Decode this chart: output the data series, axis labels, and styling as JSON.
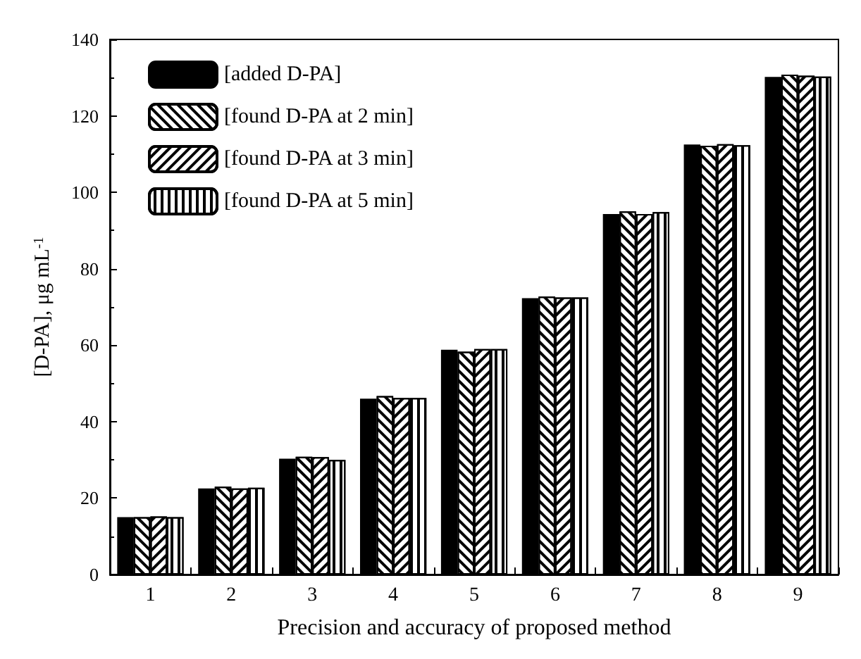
{
  "chart_data": {
    "type": "bar",
    "xlabel": "Precision and accuracy of proposed method",
    "ylabel": "[D-PA], μg mL$^{-1}$",
    "categories": [
      "1",
      "2",
      "3",
      "4",
      "5",
      "6",
      "7",
      "8",
      "9"
    ],
    "series": [
      {
        "name": "[added D-PA]",
        "color": "#000000",
        "values": [
          15,
          22.5,
          30.3,
          46,
          58.8,
          72.3,
          94.3,
          112.5,
          130.2
        ]
      },
      {
        "name": "[found D-PA at 2 min]",
        "color": "#ffffff",
        "values": [
          15,
          23,
          30.8,
          46.7,
          58.3,
          72.7,
          95,
          112.2,
          130.8
        ]
      },
      {
        "name": "[found D-PA at 3 min]",
        "color": "#ffffff",
        "values": [
          15.2,
          22.5,
          30.7,
          46.2,
          59,
          72.5,
          94.3,
          112.6,
          130.5
        ]
      },
      {
        "name": "[found D-PA at 5 min]",
        "color": "#ffffff",
        "values": [
          15,
          22.7,
          30,
          46.2,
          59,
          72.5,
          94.8,
          112.3,
          130.3
        ]
      }
    ],
    "ylim": [
      0,
      140
    ],
    "yticks": [
      0,
      20,
      40,
      60,
      80,
      100,
      120,
      140
    ],
    "grid": false,
    "legend": "top left"
  }
}
